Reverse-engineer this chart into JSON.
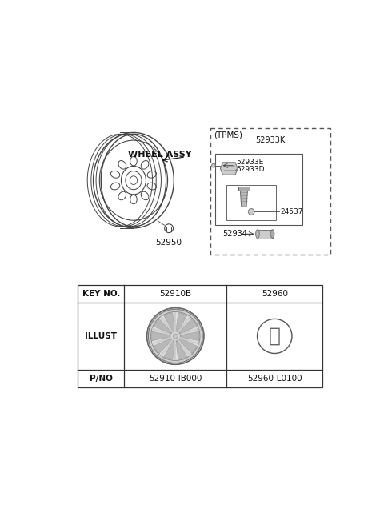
{
  "bg_color": "#ffffff",
  "wheel_assy_label": "WHEEL ASSY",
  "part_52950_label": "52950",
  "tpms_label": "(TPMS)",
  "part_52933K": "52933K",
  "part_52933E": "52933E",
  "part_52933D": "52933D",
  "part_24537": "24537",
  "part_52934": "52934",
  "key_no_label": "KEY NO.",
  "illust_label": "ILLUST",
  "pno_label": "P/NO",
  "col1_key": "52910B",
  "col2_key": "52960",
  "col1_pno": "52910-IB000",
  "col2_pno": "52960-L0100"
}
